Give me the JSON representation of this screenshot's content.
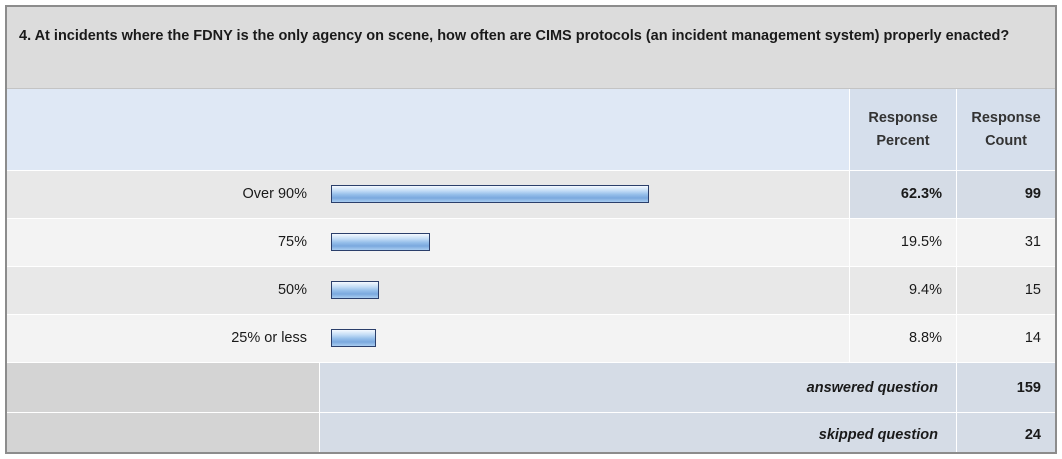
{
  "question": "4. At incidents where the FDNY is the only agency on scene, how often are CIMS protocols (an incident management system) properly enacted?",
  "header": {
    "percent_line1": "Response",
    "percent_line2": "Percent",
    "count_line1": "Response",
    "count_line2": "Count"
  },
  "colors": {
    "bar_border": "#2b3f6b",
    "bar_fill": "#93bde9",
    "header_bg": "#dfe8f5",
    "row_bg": "#eeeeee"
  },
  "chart_data": {
    "type": "bar",
    "orientation": "horizontal",
    "categories": [
      "Over 90%",
      "75%",
      "50%",
      "25% or less"
    ],
    "values": [
      62.3,
      19.5,
      9.4,
      8.8
    ],
    "value_labels": [
      "62.3%",
      "19.5%",
      "9.4%",
      "8.8%"
    ],
    "counts": [
      "99",
      "31",
      "15",
      "14"
    ],
    "xlim": [
      0,
      100
    ],
    "title": "",
    "xlabel": "",
    "ylabel": ""
  },
  "summary": [
    {
      "label": "answered question",
      "value": "159"
    },
    {
      "label": "skipped question",
      "value": "24"
    }
  ]
}
